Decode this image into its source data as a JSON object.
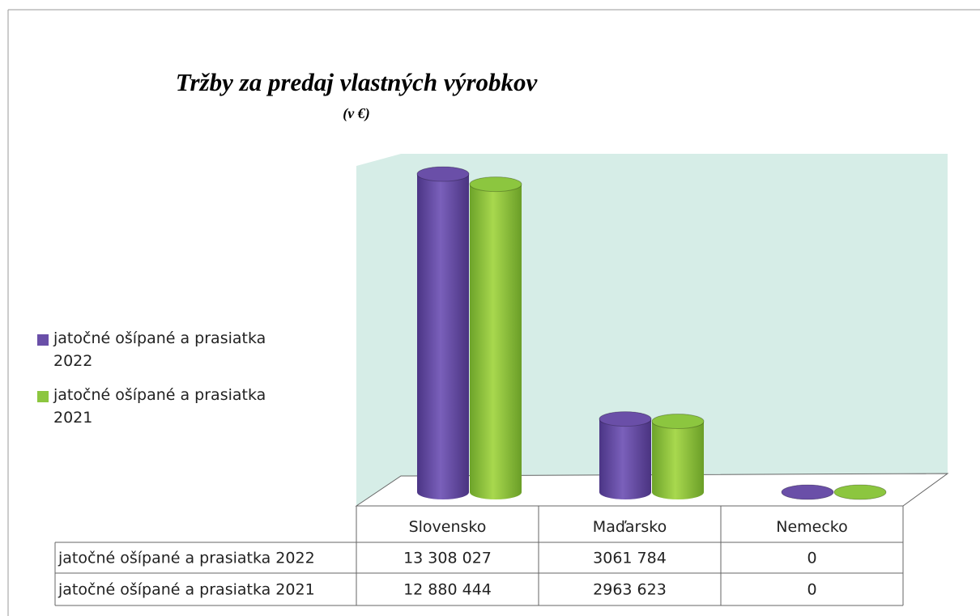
{
  "chart_data": {
    "type": "bar3d",
    "title": "Tržby za predaj vlastných výrobkov",
    "subtitle": "(v €)",
    "categories": [
      "Slovensko",
      "Maďarsko",
      "Nemecko"
    ],
    "series": [
      {
        "name": "jatočné ošípané a prasiatka 2022",
        "color": "#6a4fa8",
        "values": [
          13308027,
          3061784,
          0
        ],
        "value_labels": [
          "13 308 027",
          "3061 784",
          "0"
        ]
      },
      {
        "name": "jatočné ošípané a prasiatka 2021",
        "color": "#8cc63f",
        "values": [
          12880444,
          2963623,
          0
        ],
        "value_labels": [
          "12 880 444",
          "2963 623",
          "0"
        ]
      }
    ]
  }
}
